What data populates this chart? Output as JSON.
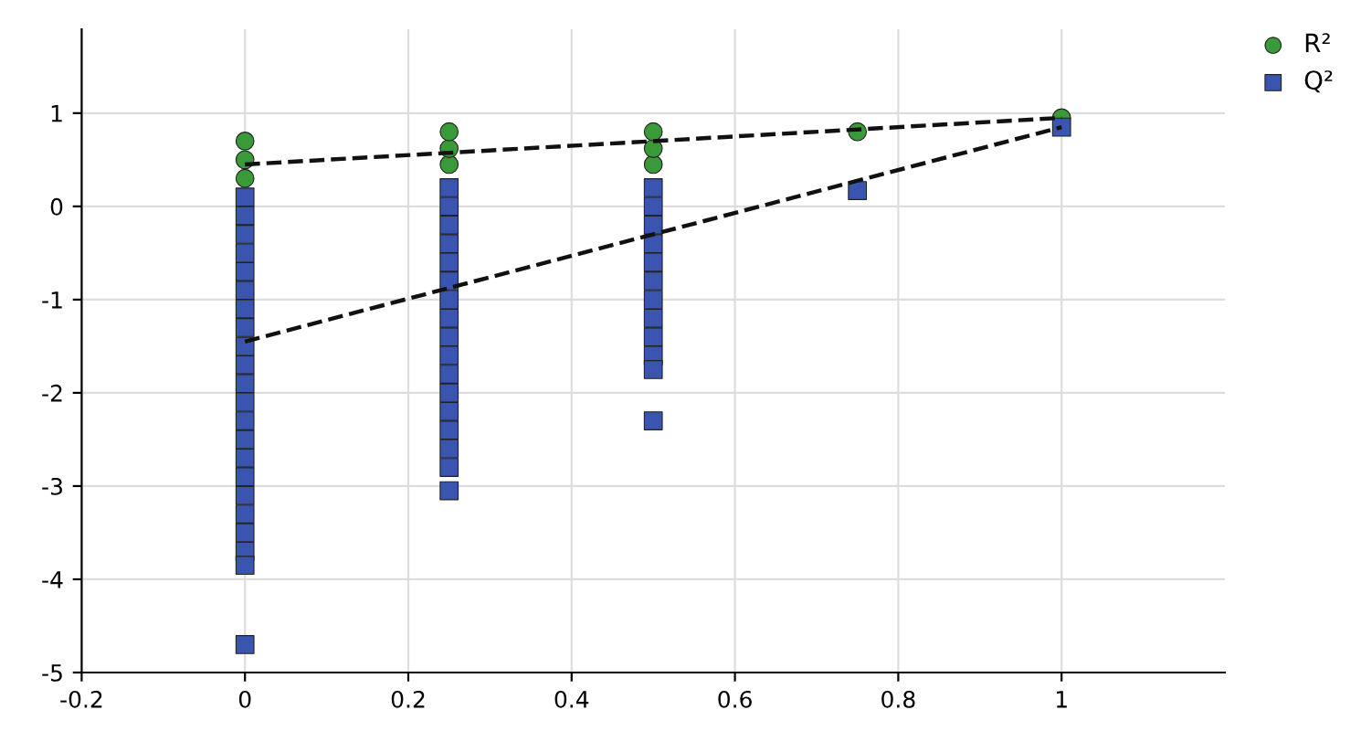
{
  "chart_data": {
    "type": "scatter",
    "legend": "top right",
    "grid": true,
    "xlim": [
      -0.2,
      1.2
    ],
    "ylim": [
      -5,
      1.9
    ],
    "xticks": [
      -0.2,
      0,
      0.2,
      0.4,
      0.6,
      0.8,
      1
    ],
    "yticks": [
      -5,
      -4,
      -3,
      -2,
      -1,
      0,
      1
    ],
    "series": [
      {
        "name": "R²",
        "color": "#3a9a3a",
        "marker": "circle",
        "x": [
          0,
          0,
          0,
          0.25,
          0.25,
          0.25,
          0.5,
          0.5,
          0.5,
          0.75,
          1
        ],
        "values": [
          0.3,
          0.5,
          0.7,
          0.45,
          0.62,
          0.8,
          0.45,
          0.62,
          0.8,
          0.8,
          0.95
        ]
      },
      {
        "name": "Q²",
        "color": "#3a55b0",
        "marker": "square",
        "x": [
          0,
          0,
          0,
          0,
          0,
          0,
          0,
          0,
          0,
          0,
          0,
          0,
          0,
          0,
          0,
          0,
          0,
          0,
          0,
          0,
          0,
          0,
          0.25,
          0.25,
          0.25,
          0.25,
          0.25,
          0.25,
          0.25,
          0.25,
          0.25,
          0.25,
          0.25,
          0.25,
          0.25,
          0.25,
          0.25,
          0.25,
          0.25,
          0.5,
          0.5,
          0.5,
          0.5,
          0.5,
          0.5,
          0.5,
          0.5,
          0.5,
          0.5,
          0.5,
          0.5,
          0.75,
          1
        ],
        "values": [
          0.1,
          -0.1,
          -0.3,
          -0.5,
          -0.7,
          -0.9,
          -1.1,
          -1.3,
          -1.5,
          -1.7,
          -1.9,
          -2.1,
          -2.3,
          -2.5,
          -2.7,
          -2.9,
          -3.1,
          -3.3,
          -3.5,
          -3.7,
          -3.85,
          -4.7,
          0.2,
          0.0,
          -0.2,
          -0.4,
          -0.6,
          -0.8,
          -1.0,
          -1.2,
          -1.4,
          -1.6,
          -1.8,
          -2.0,
          -2.2,
          -2.4,
          -2.6,
          -2.8,
          -3.05,
          0.2,
          0.0,
          -0.2,
          -0.4,
          -0.6,
          -0.8,
          -1.0,
          -1.2,
          -1.4,
          -1.6,
          -1.75,
          -2.3,
          0.17,
          0.85
        ]
      },
      {
        "type": "line",
        "color": "#111111",
        "line_style": "dashed",
        "x": [
          0,
          1
        ],
        "values": [
          0.45,
          0.95
        ]
      },
      {
        "type": "line",
        "color": "#111111",
        "line_style": "dashed",
        "x": [
          0,
          1
        ],
        "values": [
          -1.45,
          0.85
        ]
      }
    ]
  }
}
